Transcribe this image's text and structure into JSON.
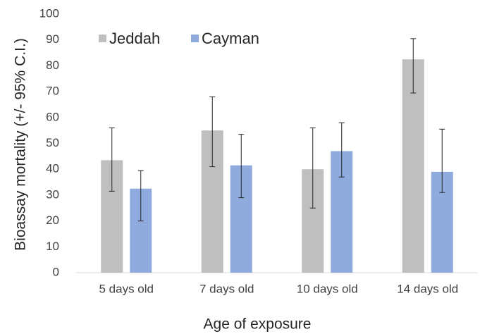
{
  "chart_data": {
    "type": "bar",
    "x_label": "Age of exposure",
    "y_label": "Bioassay mortality (+/- 95% C.I.)",
    "categories": [
      "5 days old",
      "7 days old",
      "10 days old",
      "14 days old"
    ],
    "series": [
      {
        "name": "Jeddah",
        "color": "#bfbfbf",
        "values": [
          43.5,
          55,
          40,
          82.5
        ],
        "lower": [
          31.5,
          41,
          25,
          69.5
        ],
        "upper": [
          56,
          68,
          56,
          90.5
        ]
      },
      {
        "name": "Cayman",
        "color": "#8faadc",
        "values": [
          32.5,
          41.5,
          47,
          39
        ],
        "lower": [
          20,
          29,
          37,
          31
        ],
        "upper": [
          39.5,
          53.5,
          58,
          55.5
        ]
      }
    ],
    "ylim": [
      0,
      100
    ],
    "yticks": [
      0,
      10,
      20,
      30,
      40,
      50,
      60,
      70,
      80,
      90,
      100
    ],
    "grid": false,
    "legend": "top-left"
  }
}
